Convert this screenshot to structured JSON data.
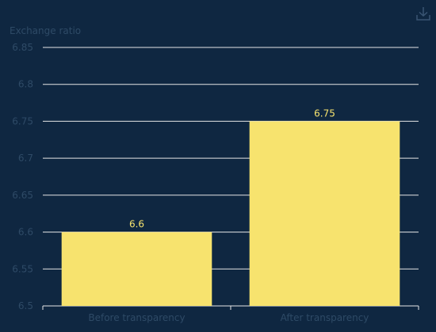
{
  "icons": {
    "download": "download-icon"
  },
  "colors": {
    "background": "#0f2741",
    "bar": "#f7e36e",
    "grid": "#e6e6e6",
    "axis_text": "#2e4a66",
    "label_text": "#f7e36e"
  },
  "chart_data": {
    "type": "bar",
    "ylabel": "Exchange ratio",
    "categories": [
      "Before transparency",
      "After transparency"
    ],
    "values": [
      6.6,
      6.75
    ],
    "ylim": [
      6.5,
      6.85
    ],
    "yticks": [
      6.5,
      6.55,
      6.6,
      6.65,
      6.7,
      6.75,
      6.8,
      6.85
    ],
    "ytick_labels": [
      "6.5",
      "6.55",
      "6.6",
      "6.65",
      "6.7",
      "6.75",
      "6.8",
      "6.85"
    ],
    "data_labels": [
      "6.6",
      "6.75"
    ],
    "grid": true
  }
}
